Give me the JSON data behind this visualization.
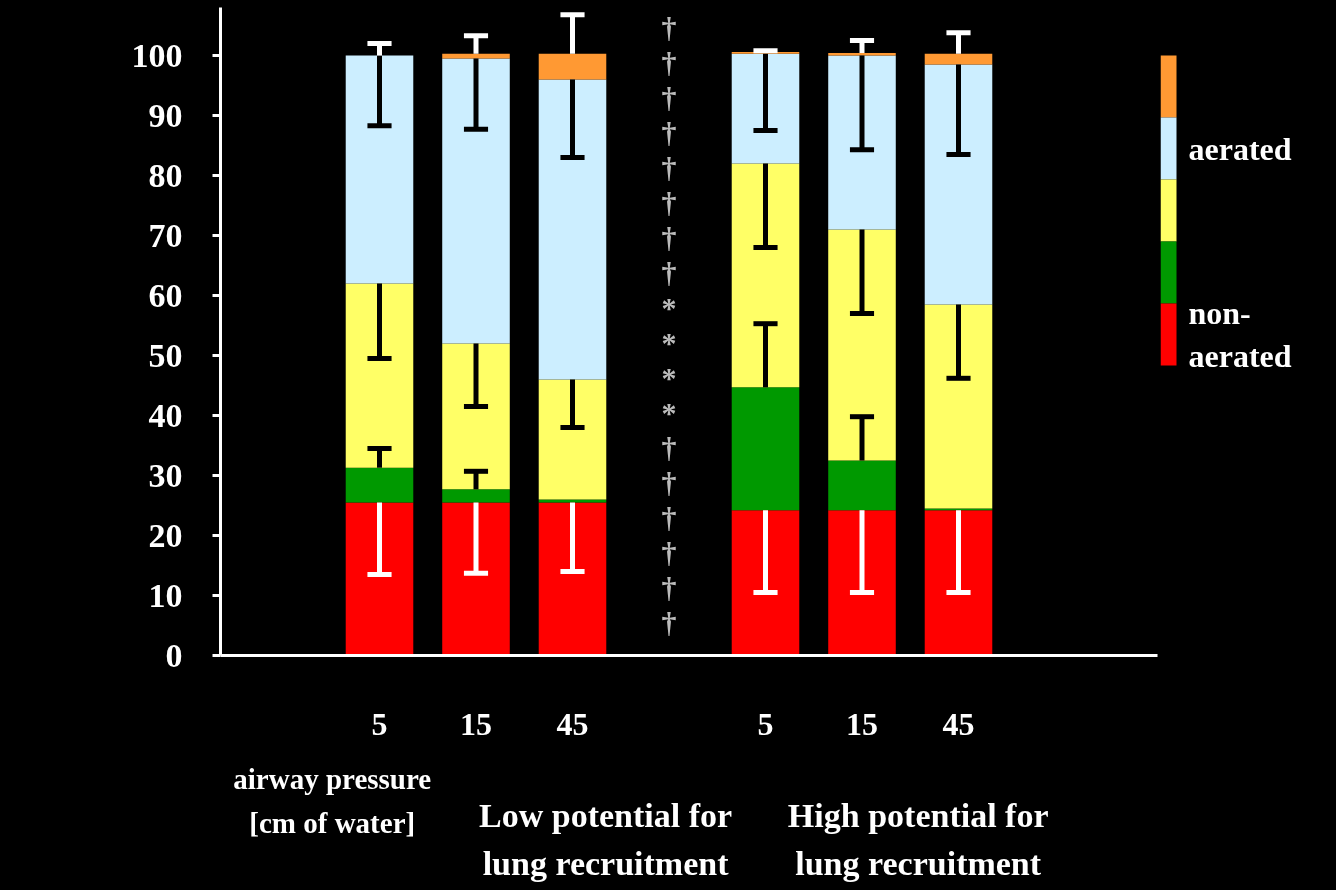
{
  "chart_data": {
    "type": "bar",
    "stacked": true,
    "categories": [
      "5",
      "15",
      "45",
      null,
      "5",
      "15",
      "45"
    ],
    "ylim": [
      0,
      108
    ],
    "yticks": [
      0,
      10,
      20,
      30,
      40,
      50,
      60,
      70,
      80,
      90,
      100
    ],
    "xlabel": "airway pressure [cm of water]",
    "grid": false,
    "legend": "right",
    "series": [
      {
        "name": "non-aerated",
        "color": "#ff0000",
        "values": [
          25.5,
          25.5,
          25.5,
          null,
          24.2,
          24.2,
          24.2
        ],
        "errors": [
          [
            13.5,
            25.5
          ],
          [
            13.7,
            25.5
          ],
          [
            14,
            25.5
          ],
          null,
          [
            10.5,
            24.2
          ],
          [
            10.5,
            24.2
          ],
          [
            10.5,
            24.2
          ]
        ]
      },
      {
        "color": "#009900",
        "values": [
          5.8,
          2.2,
          0.5,
          null,
          20.5,
          8.3,
          0.3
        ],
        "errors": [
          [
            31.3,
            34.5
          ],
          [
            27.7,
            30.7
          ],
          null,
          null,
          [
            44.7,
            55.3
          ],
          [
            32.5,
            39.8
          ],
          null
        ]
      },
      {
        "color": "#ffff66",
        "values": [
          30.7,
          24.3,
          20,
          null,
          37.3,
          38.5,
          34
        ],
        "errors": [
          [
            49.5,
            62
          ],
          [
            41.5,
            52
          ],
          [
            38,
            46
          ],
          null,
          [
            68,
            82
          ],
          [
            57,
            71
          ],
          [
            46.2,
            58.5
          ]
        ]
      },
      {
        "name": "aerated",
        "color": "#cceeff",
        "values": [
          38,
          47.5,
          50,
          null,
          18.3,
          29,
          40
        ],
        "errors": [
          [
            88.3,
            100
          ],
          [
            87.7,
            99.5
          ],
          [
            83,
            96
          ],
          null,
          [
            87.5,
            100.3
          ],
          [
            84.3,
            100
          ],
          [
            83.5,
            98.5
          ]
        ]
      },
      {
        "color": "#ff9933",
        "values": [
          0,
          0.8,
          4.3,
          null,
          0.3,
          0.4,
          1.8
        ],
        "errors": [
          [
            100,
            102
          ],
          [
            100.3,
            103.3
          ],
          [
            100.3,
            106.8
          ],
          null,
          [
            100.6,
            100.8
          ],
          [
            100.4,
            102.5
          ],
          [
            100.3,
            103.8
          ]
        ]
      }
    ],
    "annotations": [
      "†",
      "†",
      "†",
      "†",
      "†",
      "†",
      "†",
      "†",
      "*",
      "*",
      "*",
      "*",
      "†",
      "†",
      "†",
      "†",
      "†",
      "†",
      "Low potential for lung recruitment",
      "High potential for lung recruitment"
    ]
  }
}
